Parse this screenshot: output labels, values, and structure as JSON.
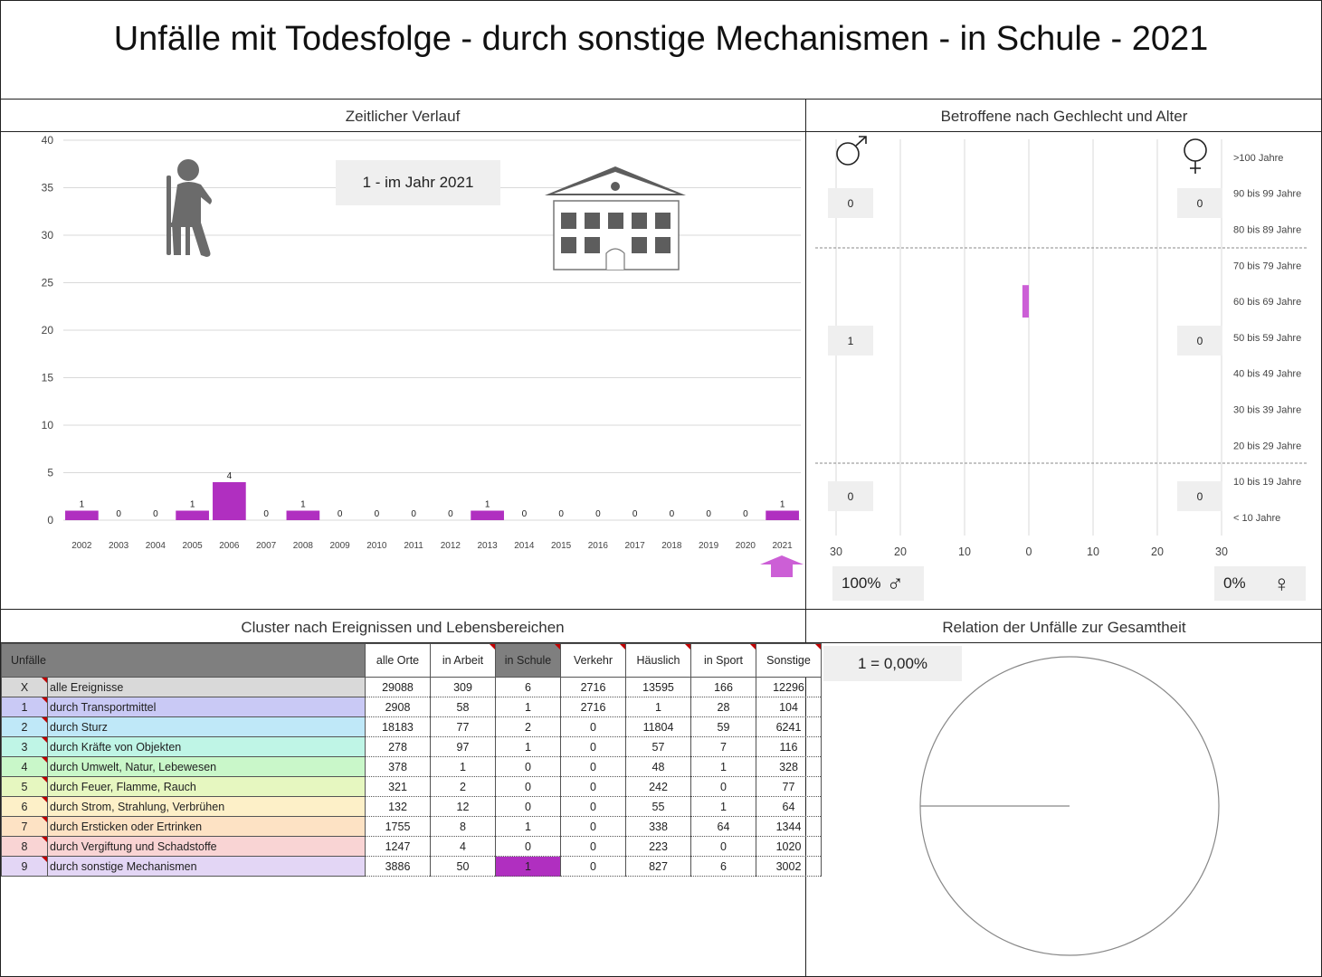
{
  "title": "Unfälle mit Todesfolge - durch sonstige Mechanismen - in Schule - 2021",
  "panels": {
    "timeline_title": "Zeitlicher Verlauf",
    "gender_title": "Betroffene nach Gechlecht und Alter",
    "cluster_title": "Cluster nach Ereignissen und Lebensbereichen",
    "relation_title": "Relation der Unfälle zur Gesamtheit"
  },
  "timeline": {
    "badge": "1 - im Jahr 2021",
    "icons": [
      "person-on-chair-icon",
      "school-building-icon",
      "up-arrow-icon"
    ],
    "bar_color": "#b02fc0"
  },
  "gender": {
    "male_symbol": "♂",
    "female_symbol": "♀",
    "male_group_values": [
      "0",
      "1",
      "0"
    ],
    "female_group_values": [
      "0",
      "0",
      "0"
    ],
    "male_pct": "100%",
    "female_pct": "0%"
  },
  "relation": {
    "label": "1 =  0,00%"
  },
  "table": {
    "corner": "Unfälle",
    "columns": [
      "alle Orte",
      "in Arbeit",
      "in Schule",
      "Verkehr",
      "Häuslich",
      "in Sport",
      "Sonstige"
    ],
    "highlight_column": 2,
    "rows": [
      {
        "id": "X",
        "name": "alle Ereignisse",
        "color": "#d9d9d9",
        "values": [
          "29088",
          "309",
          "6",
          "2716",
          "13595",
          "166",
          "12296"
        ]
      },
      {
        "id": "1",
        "name": "durch Transportmittel",
        "color": "#c9c9f5",
        "values": [
          "2908",
          "58",
          "1",
          "2716",
          "1",
          "28",
          "104"
        ]
      },
      {
        "id": "2",
        "name": "durch Sturz",
        "color": "#bfe8f8",
        "values": [
          "18183",
          "77",
          "2",
          "0",
          "11804",
          "59",
          "6241"
        ]
      },
      {
        "id": "3",
        "name": "durch Kräfte von Objekten",
        "color": "#bff5e6",
        "values": [
          "278",
          "97",
          "1",
          "0",
          "57",
          "7",
          "116"
        ]
      },
      {
        "id": "4",
        "name": "durch Umwelt, Natur, Lebewesen",
        "color": "#c9f7c9",
        "values": [
          "378",
          "1",
          "0",
          "0",
          "48",
          "1",
          "328"
        ]
      },
      {
        "id": "5",
        "name": "durch Feuer, Flamme, Rauch",
        "color": "#e6f7c0",
        "values": [
          "321",
          "2",
          "0",
          "0",
          "242",
          "0",
          "77"
        ]
      },
      {
        "id": "6",
        "name": "durch Strom, Strahlung, Verbrühen",
        "color": "#fdf0c8",
        "values": [
          "132",
          "12",
          "0",
          "0",
          "55",
          "1",
          "64"
        ]
      },
      {
        "id": "7",
        "name": "durch Ersticken oder Ertrinken",
        "color": "#fde2c4",
        "values": [
          "1755",
          "8",
          "1",
          "0",
          "338",
          "64",
          "1344"
        ]
      },
      {
        "id": "8",
        "name": "durch Vergiftung und Schadstoffe",
        "color": "#f9d4d4",
        "values": [
          "1247",
          "4",
          "0",
          "0",
          "223",
          "0",
          "1020"
        ]
      },
      {
        "id": "9",
        "name": "durch sonstige Mechanismen",
        "color": "#e3d6f5",
        "values": [
          "3886",
          "50",
          "1",
          "0",
          "827",
          "6",
          "3002"
        ]
      }
    ],
    "selected_row": 9
  },
  "chart_data": [
    {
      "type": "bar",
      "title": "Zeitlicher Verlauf",
      "categories": [
        "2002",
        "2003",
        "2004",
        "2005",
        "2006",
        "2007",
        "2008",
        "2009",
        "2010",
        "2011",
        "2012",
        "2013",
        "2014",
        "2015",
        "2016",
        "2017",
        "2018",
        "2019",
        "2020",
        "2021"
      ],
      "values": [
        1,
        0,
        0,
        1,
        4,
        0,
        1,
        0,
        0,
        0,
        0,
        1,
        0,
        0,
        0,
        0,
        0,
        0,
        0,
        1
      ],
      "ylim": [
        0,
        40
      ],
      "yticks": [
        0,
        5,
        10,
        15,
        20,
        25,
        30,
        35,
        40
      ],
      "grid": true,
      "data_labels": true
    },
    {
      "type": "bar",
      "title": "Betroffene nach Gechlecht und Alter",
      "orientation": "horizontal",
      "categories": [
        "< 10 Jahre",
        "10 bis 19 Jahre",
        "20 bis 29 Jahre",
        "30 bis 39 Jahre",
        "40 bis 49 Jahre",
        "50 bis 59 Jahre",
        "60 bis 69 Jahre",
        "70 bis 79 Jahre",
        "80 bis 89 Jahre",
        "90 bis 99 Jahre",
        ">100 Jahre"
      ],
      "series": [
        {
          "name": "♂",
          "values": [
            0,
            0,
            0,
            0,
            0,
            0,
            1,
            0,
            0,
            0,
            0
          ]
        },
        {
          "name": "♀",
          "values": [
            0,
            0,
            0,
            0,
            0,
            0,
            0,
            0,
            0,
            0,
            0
          ]
        }
      ],
      "xticks": [
        "30",
        "20",
        "10",
        "0",
        "10",
        "20",
        "30"
      ],
      "xlim": [
        -30,
        30
      ]
    },
    {
      "type": "pie",
      "title": "Relation der Unfälle zur Gesamtheit",
      "values": [
        1,
        29087
      ],
      "label": "1 =  0,00%"
    }
  ]
}
